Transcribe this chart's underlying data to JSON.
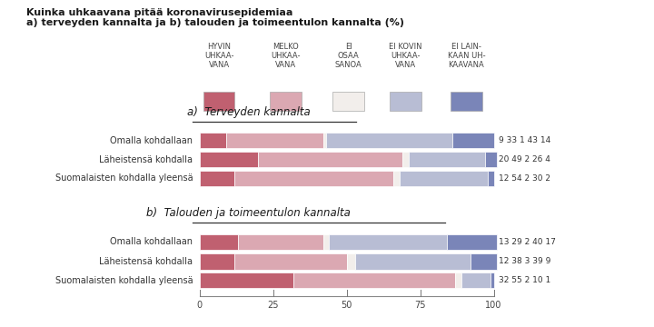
{
  "title_line1": "Kuinka uhkaavana pitää koronavirusepidemiaa",
  "title_line2": "a) terveyden kannalta ja b) talouden ja toimeentulon kannalta (%)",
  "legend_labels": [
    "HYVIN\nUHKAA-\nVANA",
    "MELKO\nUHKAA-\nVANA",
    "EI\nOSAA\nSANOA",
    "EI KOVIN\nUHKAA-\nVANA",
    "EI LAIN-\nKAAN UH-\nKAAVANA"
  ],
  "colors": [
    "#c06070",
    "#dba8b2",
    "#f2eeeb",
    "#b8bdd4",
    "#7a85b8"
  ],
  "section_a_title": "a)  Terveyden kannalta",
  "section_b_title": "b)  Talouden ja toimeentulon kannalta",
  "section_a_labels": [
    "Omalla kohdallaan",
    "Läheistensä kohdalla",
    "Suomalaisten kohdalla yleensä"
  ],
  "section_b_labels": [
    "Omalla kohdallaan",
    "Läheistensä kohdalla",
    "Suomalaisten kohdalla yleensä"
  ],
  "section_a_data": [
    [
      9,
      33,
      1,
      43,
      14
    ],
    [
      20,
      49,
      2,
      26,
      4
    ],
    [
      12,
      54,
      2,
      30,
      2
    ]
  ],
  "section_b_data": [
    [
      13,
      29,
      2,
      40,
      17
    ],
    [
      12,
      38,
      3,
      39,
      9
    ],
    [
      32,
      55,
      2,
      10,
      1
    ]
  ],
  "background_color": "#ffffff",
  "tick_vals": [
    0,
    25,
    50,
    75,
    100
  ]
}
